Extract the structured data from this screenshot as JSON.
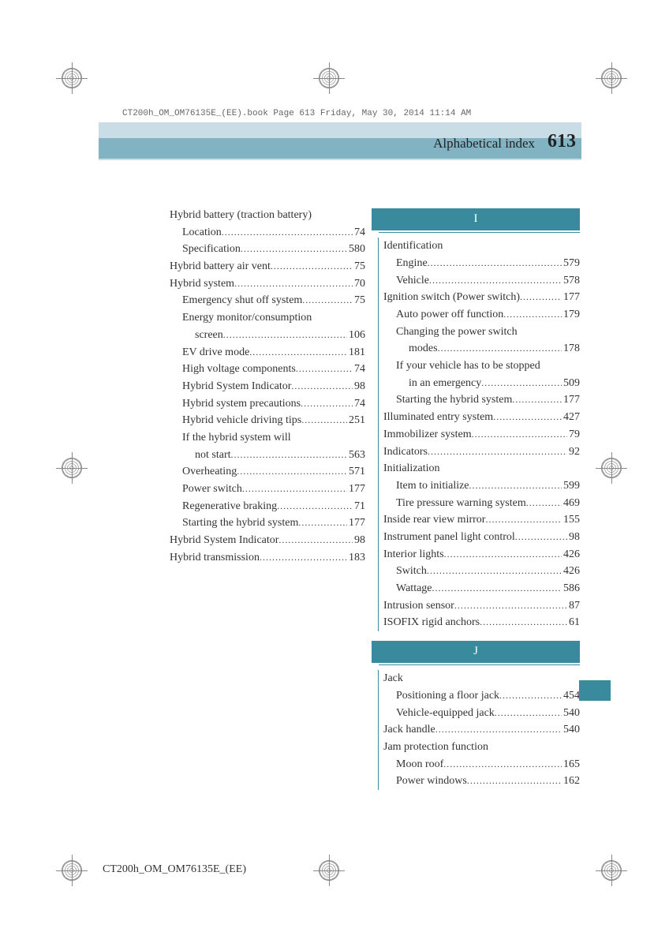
{
  "meta": {
    "top_line": "CT200h_OM_OM76135E_(EE).book  Page 613  Friday, May 30, 2014  11:14 AM",
    "footer": "CT200h_OM_OM76135E_(EE)",
    "title": "Alphabetical index",
    "page_number": "613"
  },
  "colors": {
    "band_light": "#c9dde6",
    "band_dark": "#3a8a9e",
    "text": "#333333",
    "background": "#ffffff"
  },
  "left": [
    {
      "type": "main",
      "label": "Hybrid battery (traction battery)"
    },
    {
      "type": "sub",
      "label": "Location",
      "page": "74"
    },
    {
      "type": "sub",
      "label": "Specification",
      "page": "580"
    },
    {
      "type": "main",
      "label": "Hybrid battery air vent",
      "page": " 75"
    },
    {
      "type": "main",
      "label": "Hybrid system",
      "page": "70"
    },
    {
      "type": "sub",
      "label": "Emergency shut off system",
      "page": " 75"
    },
    {
      "type": "sub",
      "label": "Energy monitor/consumption"
    },
    {
      "type": "subsub",
      "label": "screen",
      "page": "106"
    },
    {
      "type": "sub",
      "label": "EV drive mode",
      "page": "181"
    },
    {
      "type": "sub",
      "label": "High voltage components",
      "page": "74"
    },
    {
      "type": "sub",
      "label": "Hybrid System Indicator",
      "page": "98"
    },
    {
      "type": "sub",
      "label": "Hybrid system precautions",
      "page": "74"
    },
    {
      "type": "sub",
      "label": "Hybrid vehicle driving tips",
      "page": "251"
    },
    {
      "type": "sub",
      "label": "If the hybrid system will "
    },
    {
      "type": "subsub",
      "label": "not start",
      "page": "563"
    },
    {
      "type": "sub",
      "label": "Overheating",
      "page": "571"
    },
    {
      "type": "sub",
      "label": "Power switch",
      "page": "177"
    },
    {
      "type": "sub",
      "label": "Regenerative braking",
      "page": "71"
    },
    {
      "type": "sub",
      "label": "Starting the hybrid system",
      "page": "177"
    },
    {
      "type": "main",
      "label": "Hybrid System Indicator",
      "page": "98"
    },
    {
      "type": "main",
      "label": "Hybrid transmission",
      "page": "183"
    }
  ],
  "section_I": "I",
  "right_I": [
    {
      "type": "main",
      "label": "Identification"
    },
    {
      "type": "sub",
      "label": "Engine",
      "page": " 579"
    },
    {
      "type": "sub",
      "label": "Vehicle",
      "page": "578"
    },
    {
      "type": "main",
      "label": "Ignition switch (Power switch)",
      "page": "177"
    },
    {
      "type": "sub",
      "label": "Auto power off function",
      "page": "179"
    },
    {
      "type": "sub",
      "label": "Changing the power switch "
    },
    {
      "type": "subsub",
      "label": "modes",
      "page": "178"
    },
    {
      "type": "sub",
      "label": "If your vehicle has to be stopped "
    },
    {
      "type": "subsub",
      "label": "in an emergency",
      "page": "509"
    },
    {
      "type": "sub",
      "label": "Starting the hybrid system",
      "page": "177"
    },
    {
      "type": "main",
      "label": "Illuminated entry system",
      "page": "427"
    },
    {
      "type": "main",
      "label": "Immobilizer system",
      "page": "79"
    },
    {
      "type": "main",
      "label": "Indicators",
      "page": " 92"
    },
    {
      "type": "main",
      "label": "Initialization"
    },
    {
      "type": "sub",
      "label": "Item to initialize",
      "page": "599"
    },
    {
      "type": "sub",
      "label": "Tire pressure warning system",
      "page": " 469"
    },
    {
      "type": "main",
      "label": "Inside rear view mirror",
      "page": " 155"
    },
    {
      "type": "main",
      "label": "Instrument panel light control",
      "page": " 98"
    },
    {
      "type": "main",
      "label": "Interior lights",
      "page": " 426"
    },
    {
      "type": "sub",
      "label": "Switch",
      "page": " 426"
    },
    {
      "type": "sub",
      "label": "Wattage",
      "page": "586"
    },
    {
      "type": "main",
      "label": "Intrusion sensor",
      "page": " 87"
    },
    {
      "type": "main",
      "label": "ISOFIX rigid anchors",
      "page": "61"
    }
  ],
  "section_J": "J",
  "right_J": [
    {
      "type": "main",
      "label": "Jack"
    },
    {
      "type": "sub",
      "label": "Positioning a floor jack",
      "page": " 454"
    },
    {
      "type": "sub",
      "label": "Vehicle-equipped jack",
      "page": "540"
    },
    {
      "type": "main",
      "label": "Jack handle",
      "page": "540"
    },
    {
      "type": "main",
      "label": "Jam protection function"
    },
    {
      "type": "sub",
      "label": "Moon roof",
      "page": "165"
    },
    {
      "type": "sub",
      "label": "Power windows",
      "page": "162"
    }
  ]
}
